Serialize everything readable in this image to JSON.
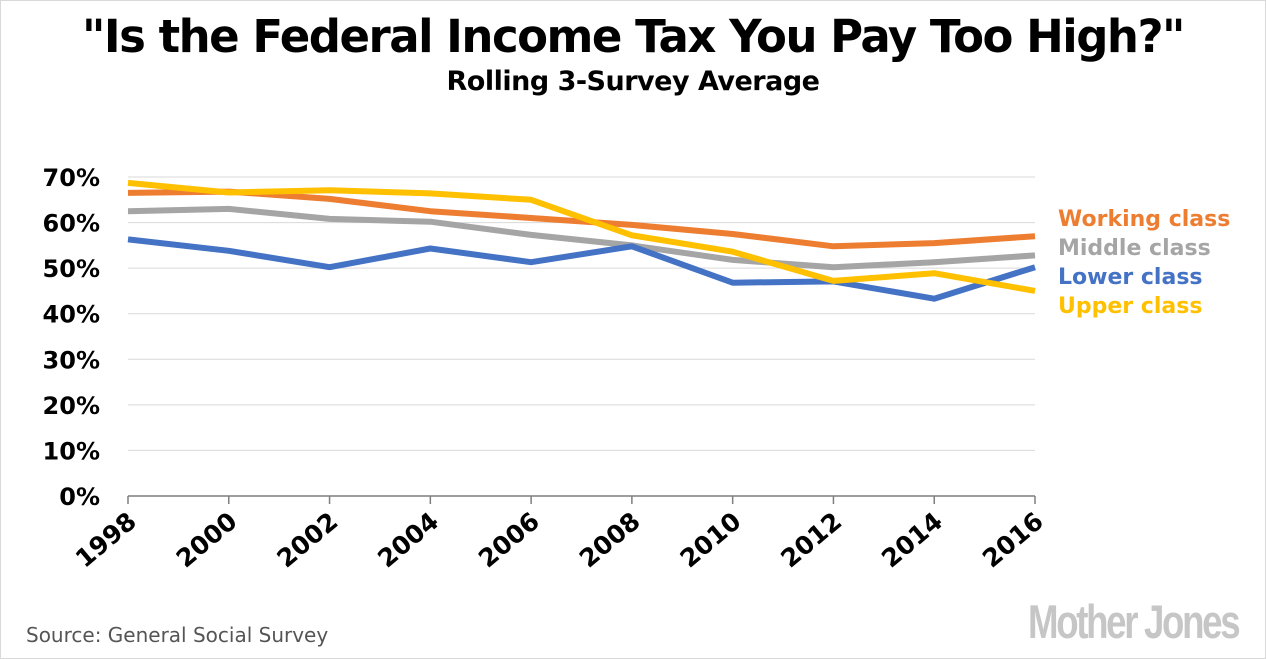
{
  "header": {
    "title": "\"Is the Federal Income Tax You Pay Too High?\"",
    "subtitle": "Rolling 3-Survey Average"
  },
  "footer": {
    "source": "Source:  General Social Survey",
    "logo": "Mother Jones"
  },
  "chart_data": {
    "type": "line",
    "title": "\"Is the Federal Income Tax You Pay Too High?\"",
    "subtitle": "Rolling 3-Survey Average",
    "xlabel": "",
    "ylabel": "",
    "x": [
      "1998",
      "2000",
      "2002",
      "2004",
      "2006",
      "2008",
      "2010",
      "2012",
      "2014",
      "2016"
    ],
    "y_ticks": [
      "0%",
      "10%",
      "20%",
      "30%",
      "40%",
      "50%",
      "60%",
      "70%"
    ],
    "ylim": [
      0,
      70
    ],
    "grid": "horizontal",
    "legend_placement": "right",
    "series": [
      {
        "name": "Working class",
        "color": "#ed7d31",
        "values": [
          66.5,
          66.8,
          65.2,
          62.5,
          61.0,
          59.5,
          57.5,
          54.8,
          55.5,
          57.0
        ]
      },
      {
        "name": "Middle class",
        "color": "#a5a5a5",
        "values": [
          62.5,
          63.0,
          60.8,
          60.2,
          57.3,
          55.0,
          51.8,
          50.2,
          51.3,
          52.8
        ]
      },
      {
        "name": "Lower class",
        "color": "#4472c4",
        "values": [
          56.3,
          53.8,
          50.2,
          54.3,
          51.3,
          54.8,
          46.8,
          47.1,
          43.3,
          50.2
        ]
      },
      {
        "name": "Upper class",
        "color": "#ffc000",
        "values": [
          68.7,
          66.6,
          67.1,
          66.4,
          65.0,
          57.2,
          53.6,
          47.2,
          48.9,
          45.0
        ]
      }
    ]
  }
}
